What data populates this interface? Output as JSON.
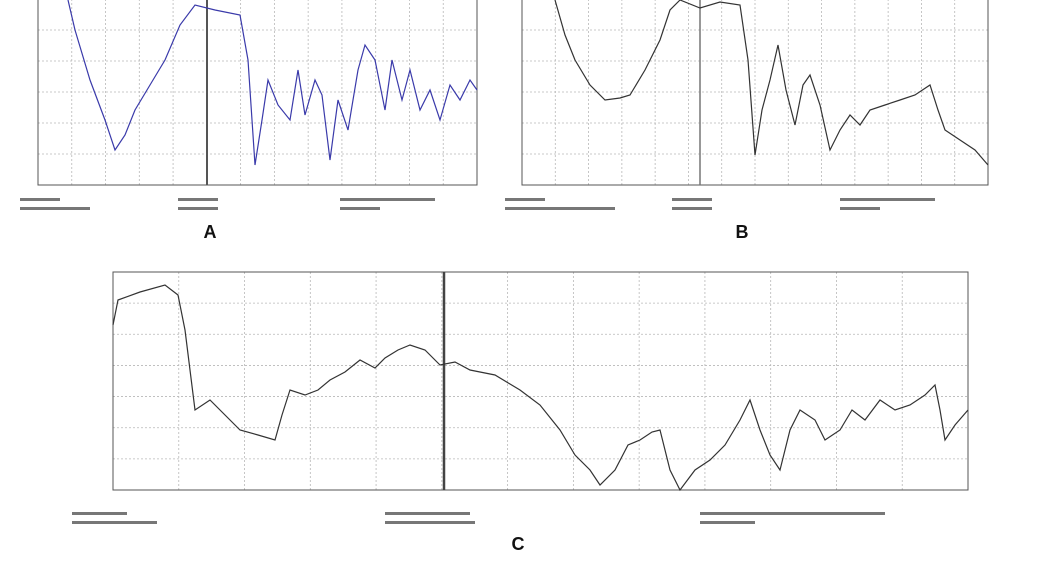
{
  "figure": {
    "panels": [
      {
        "label": "A"
      },
      {
        "label": "B"
      },
      {
        "label": "C"
      }
    ]
  }
}
